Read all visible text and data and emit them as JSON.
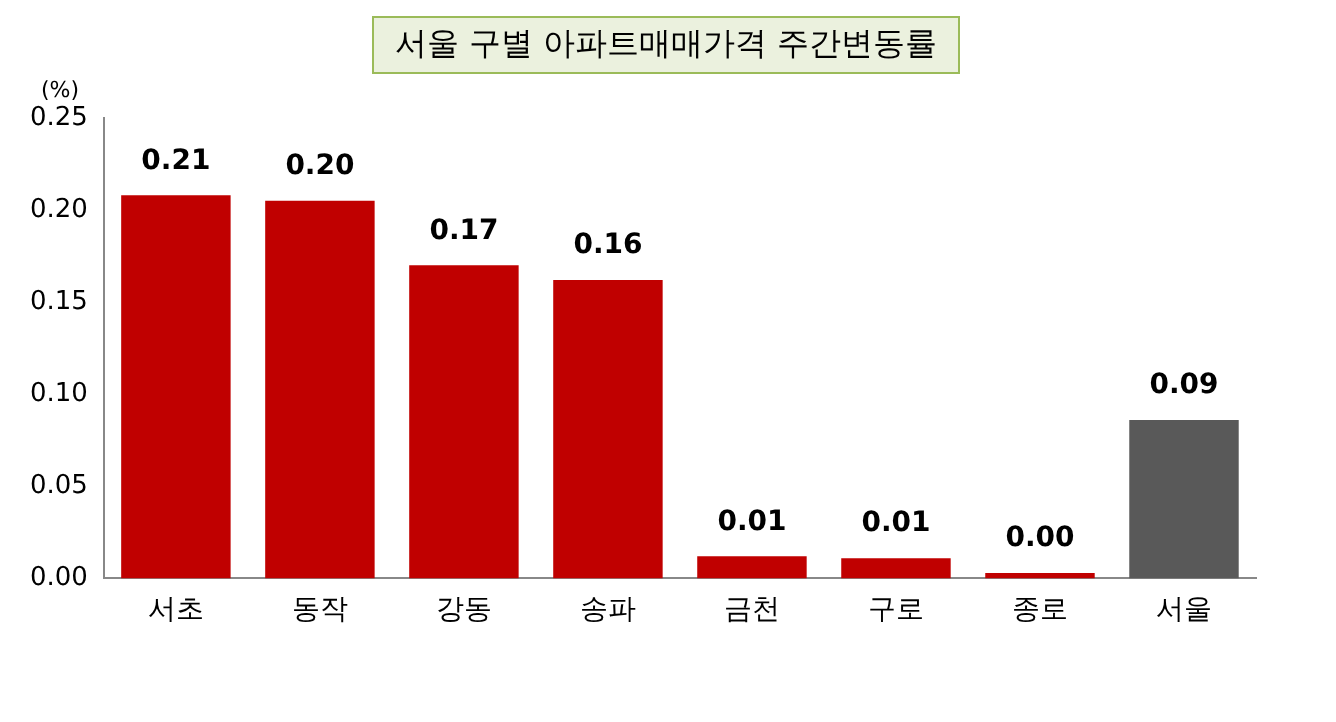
{
  "chart_data": {
    "type": "bar",
    "title": "서울 구별 아파트매매가격 주간변동률",
    "ylabel": "(%)",
    "categories": [
      "서초",
      "동작",
      "강동",
      "송파",
      "금천",
      "구로",
      "종로",
      "서울"
    ],
    "values": [
      0.208,
      0.205,
      0.17,
      0.162,
      0.012,
      0.011,
      0.003,
      0.086
    ],
    "colors": [
      "#c00000",
      "#c00000",
      "#c00000",
      "#c00000",
      "#c00000",
      "#c00000",
      "#c00000",
      "#595959"
    ],
    "value_labels": [
      "0.21",
      "0.20",
      "0.17",
      "0.16",
      "0.01",
      "0.01",
      "0.00",
      "0.09"
    ],
    "ylim": [
      0,
      0.25
    ],
    "yticks": [
      {
        "value": 0,
        "label": "0.00"
      },
      {
        "value": 0.05,
        "label": "0.05"
      },
      {
        "value": 0.1,
        "label": "0.10"
      },
      {
        "value": 0.15,
        "label": "0.15"
      },
      {
        "value": 0.2,
        "label": "0.20"
      },
      {
        "value": 0.25,
        "label": "0.25"
      }
    ],
    "grid": false,
    "legend": false
  }
}
